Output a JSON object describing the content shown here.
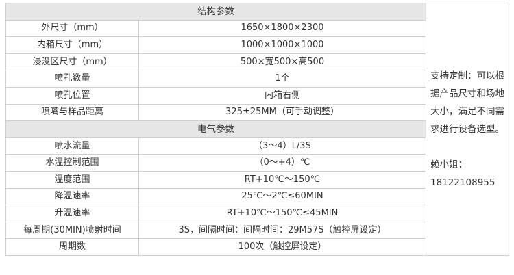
{
  "sections": [
    {
      "title": "结构参数",
      "rows": [
        {
          "label": "外尺寸（mm）",
          "value": "1650×1800×2300"
        },
        {
          "label": "内箱尺寸（mm）",
          "value": "1000×1000×1000"
        },
        {
          "label": "浸没区尺寸（mm）",
          "value": "500×宽500×高500"
        },
        {
          "label": "喷孔数量",
          "value": "1个"
        },
        {
          "label": "喷孔位置",
          "value": "内箱右侧"
        },
        {
          "label": "喷嘴与样品距离",
          "value": "325±25MM（可手动调整）"
        }
      ]
    },
    {
      "title": "电气参数",
      "rows": [
        {
          "label": "喷水流量",
          "value": "（3～4）L/3S"
        },
        {
          "label": "水温控制范围",
          "value": "（0～+4）℃"
        },
        {
          "label": "温度范围",
          "value": "RT+10℃～150℃"
        },
        {
          "label": "降温速率",
          "value": "25℃～2℃≤60MIN"
        },
        {
          "label": "升温速率",
          "value": "RT+10℃～150℃≤45MIN"
        },
        {
          "label": "每周期(30MIN)喷射时间",
          "value": "3S，间隔时间：间隔时间：29M57S（触控屏设定）"
        },
        {
          "label": "周期数",
          "value": "100次（触控屏设定）"
        }
      ]
    }
  ],
  "side_note": {
    "text": "支持定制：可以根据产品尺寸和场地大小，满足不同需求进行设备选型。",
    "contact_name": "赖小姐：",
    "contact_phone": "18122108955"
  }
}
